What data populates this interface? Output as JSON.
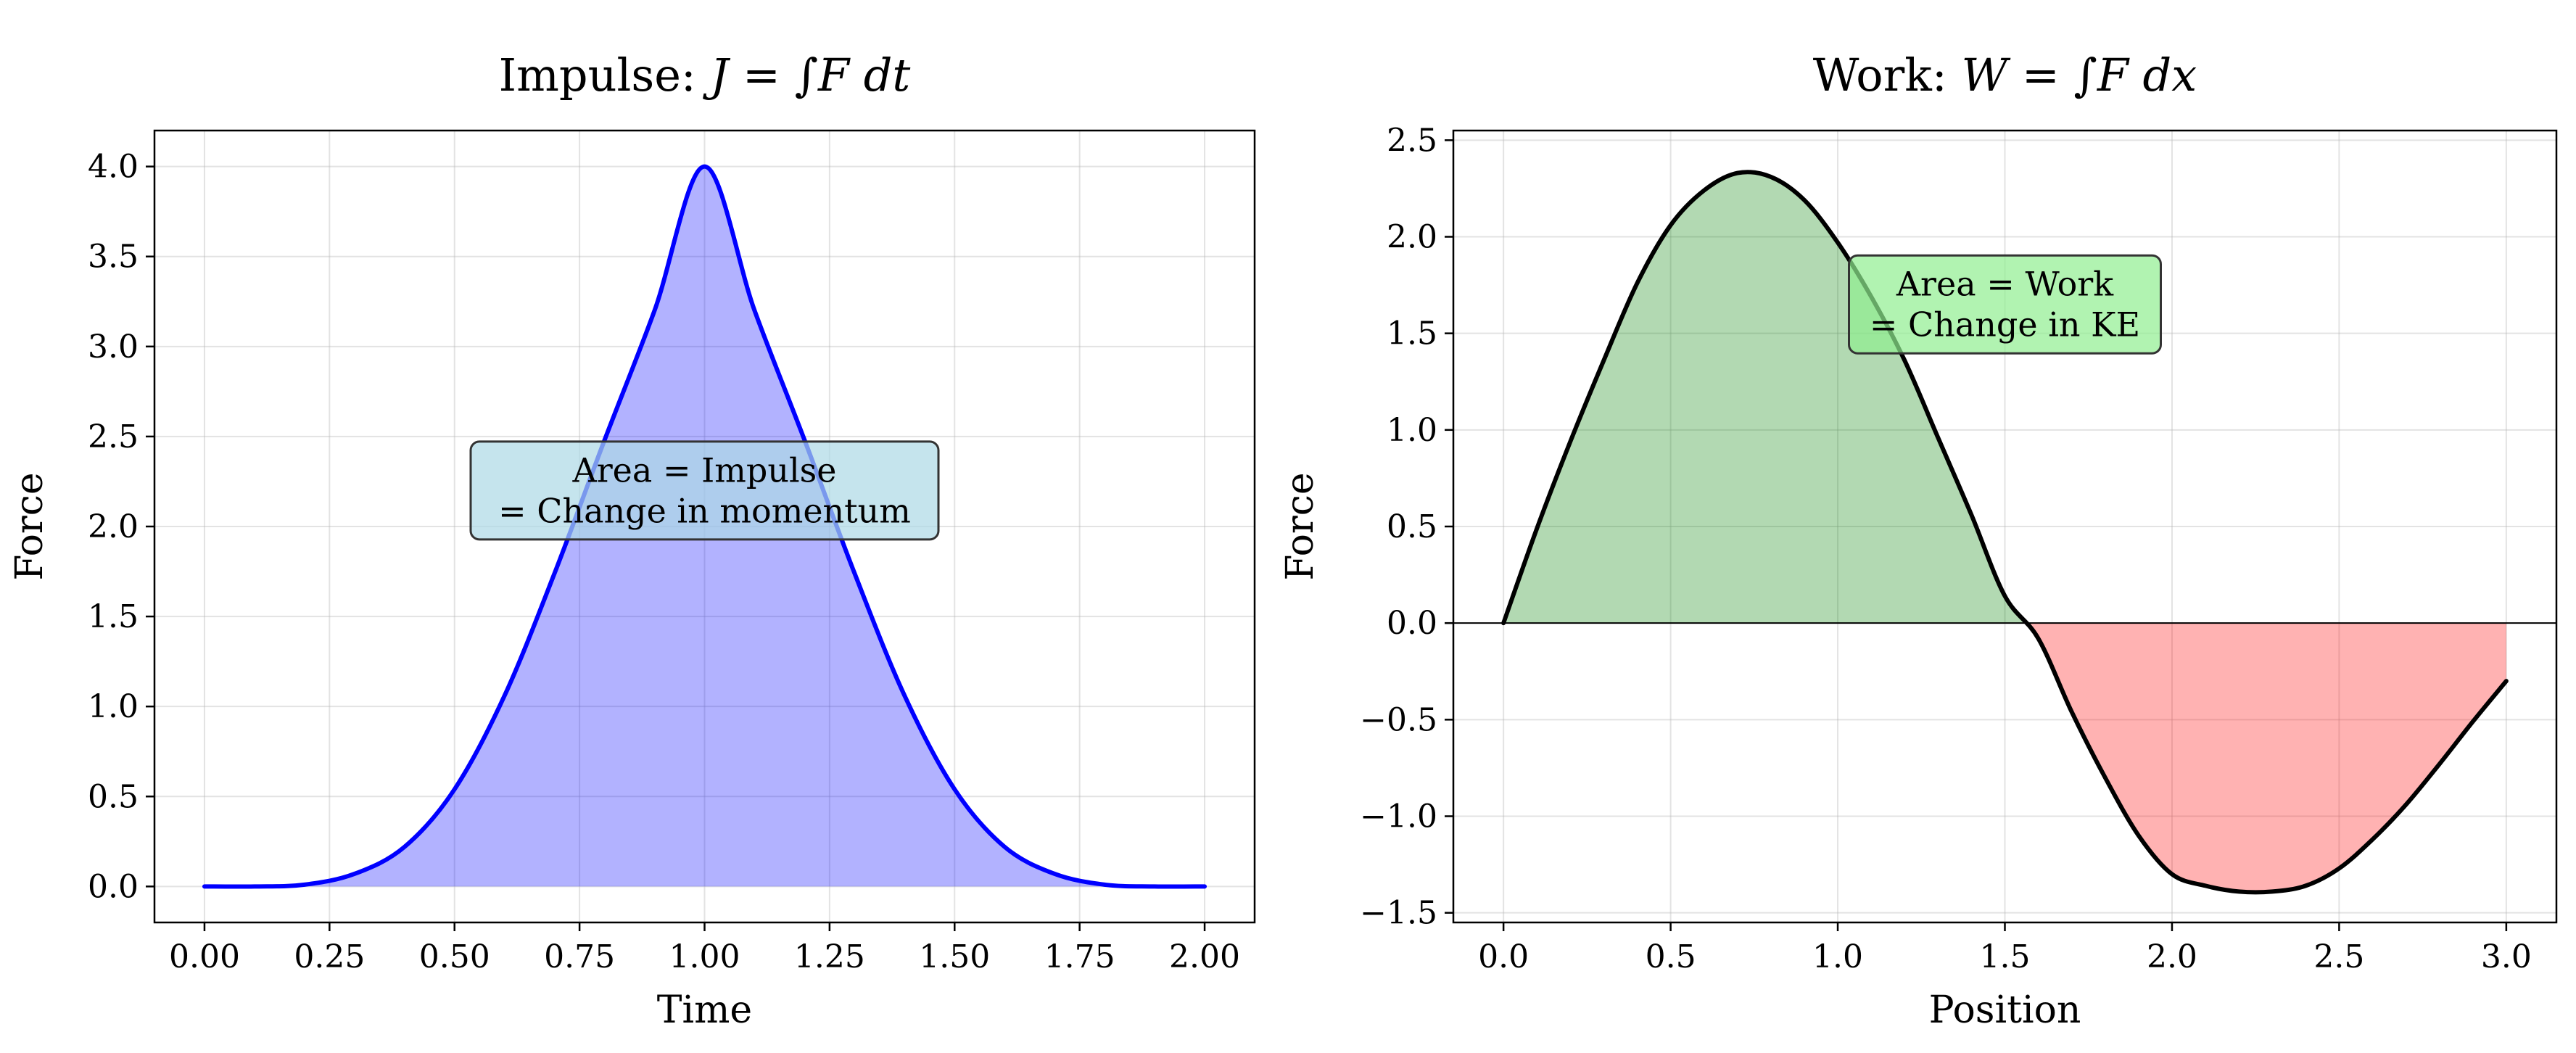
{
  "chart_data": [
    {
      "type": "area",
      "title": "Impulse: J = ∫F dt",
      "title_parts": {
        "prefix": "Impulse: ",
        "math": "J = ∫F dt"
      },
      "xlabel": "Time",
      "ylabel": "Force",
      "xlim": [
        -0.1,
        2.1
      ],
      "ylim": [
        -0.2,
        4.2
      ],
      "xticks": [
        0.0,
        0.25,
        0.5,
        0.75,
        1.0,
        1.25,
        1.5,
        1.75,
        2.0
      ],
      "xtick_labels": [
        "0.00",
        "0.25",
        "0.50",
        "0.75",
        "1.00",
        "1.25",
        "1.50",
        "1.75",
        "2.00"
      ],
      "yticks": [
        0.0,
        0.5,
        1.0,
        1.5,
        2.0,
        2.5,
        3.0,
        3.5,
        4.0
      ],
      "ytick_labels": [
        "0.0",
        "0.5",
        "1.0",
        "1.5",
        "2.0",
        "2.5",
        "3.0",
        "3.5",
        "4.0"
      ],
      "grid": true,
      "x": [
        0.0,
        0.1,
        0.2,
        0.3,
        0.4,
        0.5,
        0.6,
        0.7,
        0.8,
        0.9,
        1.0,
        1.1,
        1.2,
        1.3,
        1.4,
        1.5,
        1.6,
        1.7,
        1.8,
        1.9,
        2.0
      ],
      "y": [
        0.0,
        0.0,
        0.01,
        0.07,
        0.22,
        0.54,
        1.06,
        1.74,
        2.48,
        3.2,
        4.0,
        3.2,
        2.48,
        1.74,
        1.06,
        0.54,
        0.22,
        0.07,
        0.01,
        0.0,
        0.0
      ],
      "series": [
        {
          "line_color": "#0000ff",
          "fill_color": "#0000ff",
          "fill_opacity": 0.3
        }
      ],
      "annotation": {
        "lines": [
          "Area = Impulse",
          "= Change in momentum"
        ],
        "x": 1.0,
        "y": 2.2,
        "box_color": "#add8e6"
      }
    },
    {
      "type": "area",
      "title": "Work: W = ∫F dx",
      "title_parts": {
        "prefix": "Work: ",
        "math": "W = ∫F dx"
      },
      "xlabel": "Position",
      "ylabel": "Force",
      "xlim": [
        -0.15,
        3.15
      ],
      "ylim": [
        -1.55,
        2.55
      ],
      "xticks": [
        0.0,
        0.5,
        1.0,
        1.5,
        2.0,
        2.5,
        3.0
      ],
      "xtick_labels": [
        "0.0",
        "0.5",
        "1.0",
        "1.5",
        "2.0",
        "2.5",
        "3.0"
      ],
      "yticks": [
        -1.5,
        -1.0,
        -0.5,
        0.0,
        0.5,
        1.0,
        1.5,
        2.0,
        2.5
      ],
      "ytick_labels": [
        "−1.5",
        "−1.0",
        "−0.5",
        "0.0",
        "0.5",
        "1.0",
        "1.5",
        "2.0",
        "2.5"
      ],
      "grid": true,
      "x": [
        0.0,
        0.1,
        0.2,
        0.3,
        0.4,
        0.5,
        0.6,
        0.7,
        0.8,
        0.9,
        1.0,
        1.1,
        1.2,
        1.3,
        1.4,
        1.5,
        1.6,
        1.7,
        1.8,
        1.9,
        2.0,
        2.1,
        2.2,
        2.3,
        2.4,
        2.5,
        2.6,
        2.7,
        2.8,
        2.9,
        3.0
      ],
      "y": [
        0.0,
        0.49,
        0.94,
        1.36,
        1.76,
        2.06,
        2.24,
        2.33,
        2.31,
        2.19,
        1.97,
        1.69,
        1.36,
        0.96,
        0.56,
        0.14,
        -0.08,
        -0.46,
        -0.8,
        -1.1,
        -1.3,
        -1.36,
        -1.39,
        -1.39,
        -1.36,
        -1.27,
        -1.12,
        -0.94,
        -0.73,
        -0.51,
        -0.3
      ],
      "series": [
        {
          "line_color": "#000000",
          "positive_fill": "#008000",
          "negative_fill": "#ff0000",
          "fill_opacity": 0.3
        }
      ],
      "annotation": {
        "lines": [
          "Area = Work",
          "= Change in KE"
        ],
        "x": 1.5,
        "y": 1.65,
        "box_color": "#90ee90"
      }
    }
  ]
}
